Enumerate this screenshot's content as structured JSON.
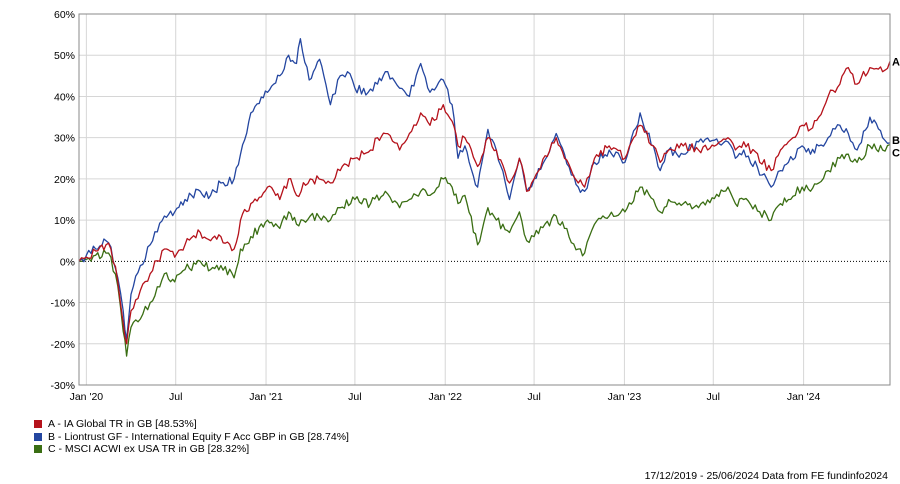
{
  "chart_data": {
    "type": "line",
    "title": "",
    "xlabel": "",
    "ylabel": "",
    "ylim": [
      -30,
      60
    ],
    "y_ticks": [
      "60%",
      "50%",
      "40%",
      "30%",
      "20%",
      "10%",
      "0%",
      "-10%",
      "-20%",
      "-30%"
    ],
    "y_tick_values": [
      60,
      50,
      40,
      30,
      20,
      10,
      0,
      -10,
      -20,
      -30
    ],
    "x_range": [
      "2019-12-17",
      "2024-06-25"
    ],
    "x_ticks": [
      {
        "label": "Jan '20",
        "date": "2020-01-01"
      },
      {
        "label": "Jul",
        "date": "2020-07-01"
      },
      {
        "label": "Jan '21",
        "date": "2021-01-01"
      },
      {
        "label": "Jul",
        "date": "2021-07-01"
      },
      {
        "label": "Jan '22",
        "date": "2022-01-01"
      },
      {
        "label": "Jul",
        "date": "2022-07-01"
      },
      {
        "label": "Jan '23",
        "date": "2023-01-01"
      },
      {
        "label": "Jul",
        "date": "2023-07-01"
      },
      {
        "label": "Jan '24",
        "date": "2024-01-01"
      }
    ],
    "grid": true,
    "zero_line": true,
    "legend_position": "bottom-left",
    "series": [
      {
        "name": "A - IA Global TR in GB [48.53%]",
        "end_label": "A",
        "color": "#b5121b",
        "points": [
          [
            "2019-12-17",
            0
          ],
          [
            "2020-01-01",
            1
          ],
          [
            "2020-01-20",
            2.5
          ],
          [
            "2020-02-10",
            4
          ],
          [
            "2020-02-20",
            3
          ],
          [
            "2020-03-05",
            -5
          ],
          [
            "2020-03-16",
            -15
          ],
          [
            "2020-03-23",
            -20
          ],
          [
            "2020-04-01",
            -12
          ],
          [
            "2020-04-20",
            -7
          ],
          [
            "2020-05-10",
            -3
          ],
          [
            "2020-06-08",
            3
          ],
          [
            "2020-06-29",
            1
          ],
          [
            "2020-07-20",
            4
          ],
          [
            "2020-08-20",
            7
          ],
          [
            "2020-09-10",
            5
          ],
          [
            "2020-10-01",
            6
          ],
          [
            "2020-10-28",
            3
          ],
          [
            "2020-11-10",
            10
          ],
          [
            "2020-12-01",
            14
          ],
          [
            "2021-01-04",
            18
          ],
          [
            "2021-01-29",
            15
          ],
          [
            "2021-02-16",
            20
          ],
          [
            "2021-03-04",
            16
          ],
          [
            "2021-04-01",
            20
          ],
          [
            "2021-05-12",
            19
          ],
          [
            "2021-06-01",
            22
          ],
          [
            "2021-07-01",
            25
          ],
          [
            "2021-08-02",
            27
          ],
          [
            "2021-08-16",
            30
          ],
          [
            "2021-09-01",
            31
          ],
          [
            "2021-09-30",
            27
          ],
          [
            "2021-10-20",
            31
          ],
          [
            "2021-11-12",
            36
          ],
          [
            "2021-12-01",
            33
          ],
          [
            "2021-12-28",
            38
          ],
          [
            "2022-01-15",
            34
          ],
          [
            "2022-01-27",
            28
          ],
          [
            "2022-02-10",
            30
          ],
          [
            "2022-03-08",
            23
          ],
          [
            "2022-03-29",
            30
          ],
          [
            "2022-04-15",
            27
          ],
          [
            "2022-05-12",
            19
          ],
          [
            "2022-06-01",
            25
          ],
          [
            "2022-06-16",
            17
          ],
          [
            "2022-07-01",
            20
          ],
          [
            "2022-08-15",
            30
          ],
          [
            "2022-09-01",
            25
          ],
          [
            "2022-09-29",
            19
          ],
          [
            "2022-10-12",
            18
          ],
          [
            "2022-11-01",
            25
          ],
          [
            "2022-12-01",
            28
          ],
          [
            "2023-01-02",
            25
          ],
          [
            "2023-02-02",
            33
          ],
          [
            "2023-03-01",
            28
          ],
          [
            "2023-03-15",
            24
          ],
          [
            "2023-04-01",
            27
          ],
          [
            "2023-05-01",
            28
          ],
          [
            "2023-06-01",
            27
          ],
          [
            "2023-07-31",
            30
          ],
          [
            "2023-08-15",
            27
          ],
          [
            "2023-09-01",
            29
          ],
          [
            "2023-10-27",
            22
          ],
          [
            "2023-11-15",
            27
          ],
          [
            "2023-12-01",
            29
          ],
          [
            "2023-12-29",
            33
          ],
          [
            "2024-01-15",
            32
          ],
          [
            "2024-02-01",
            35
          ],
          [
            "2024-02-20",
            40
          ],
          [
            "2024-03-15",
            43
          ],
          [
            "2024-04-01",
            47
          ],
          [
            "2024-04-19",
            43
          ],
          [
            "2024-05-15",
            47
          ],
          [
            "2024-06-10",
            46
          ],
          [
            "2024-06-25",
            48.53
          ]
        ]
      },
      {
        "name": "B - Liontrust GF - International Equity F Acc GBP in GB [28.74%]",
        "end_label": "B",
        "color": "#2446a0",
        "points": [
          [
            "2019-12-17",
            0
          ],
          [
            "2020-01-01",
            1.5
          ],
          [
            "2020-01-20",
            3
          ],
          [
            "2020-02-10",
            5
          ],
          [
            "2020-02-20",
            3.5
          ],
          [
            "2020-03-05",
            -4
          ],
          [
            "2020-03-16",
            -12
          ],
          [
            "2020-03-23",
            -19
          ],
          [
            "2020-04-01",
            -8
          ],
          [
            "2020-04-20",
            -1
          ],
          [
            "2020-05-10",
            4
          ],
          [
            "2020-06-08",
            11
          ],
          [
            "2020-06-29",
            12
          ],
          [
            "2020-07-20",
            15
          ],
          [
            "2020-08-20",
            17
          ],
          [
            "2020-09-10",
            16
          ],
          [
            "2020-10-01",
            19
          ],
          [
            "2020-10-28",
            20
          ],
          [
            "2020-11-10",
            26
          ],
          [
            "2020-12-01",
            36
          ],
          [
            "2021-01-04",
            41
          ],
          [
            "2021-01-29",
            45
          ],
          [
            "2021-02-16",
            50
          ],
          [
            "2021-03-04",
            48
          ],
          [
            "2021-03-12",
            54
          ],
          [
            "2021-03-30",
            44
          ],
          [
            "2021-04-20",
            49
          ],
          [
            "2021-05-12",
            38
          ],
          [
            "2021-06-01",
            45
          ],
          [
            "2021-06-16",
            46
          ],
          [
            "2021-07-01",
            42
          ],
          [
            "2021-07-28",
            41
          ],
          [
            "2021-08-16",
            43
          ],
          [
            "2021-09-01",
            46
          ],
          [
            "2021-09-30",
            42
          ],
          [
            "2021-10-20",
            40
          ],
          [
            "2021-11-12",
            48
          ],
          [
            "2021-12-01",
            41
          ],
          [
            "2021-12-28",
            44
          ],
          [
            "2022-01-15",
            38
          ],
          [
            "2022-01-27",
            25
          ],
          [
            "2022-02-10",
            28
          ],
          [
            "2022-03-08",
            18
          ],
          [
            "2022-03-29",
            32
          ],
          [
            "2022-04-15",
            27
          ],
          [
            "2022-05-12",
            15
          ],
          [
            "2022-06-01",
            25
          ],
          [
            "2022-06-16",
            17
          ],
          [
            "2022-07-01",
            20
          ],
          [
            "2022-08-15",
            31
          ],
          [
            "2022-09-01",
            26
          ],
          [
            "2022-09-29",
            18
          ],
          [
            "2022-10-12",
            17
          ],
          [
            "2022-11-01",
            24
          ],
          [
            "2022-12-01",
            27
          ],
          [
            "2023-01-02",
            24
          ],
          [
            "2023-02-02",
            36
          ],
          [
            "2023-03-01",
            28
          ],
          [
            "2023-03-15",
            22
          ],
          [
            "2023-04-01",
            27
          ],
          [
            "2023-05-01",
            26
          ],
          [
            "2023-06-01",
            29
          ],
          [
            "2023-07-31",
            29
          ],
          [
            "2023-08-15",
            25
          ],
          [
            "2023-09-01",
            27
          ],
          [
            "2023-10-27",
            18
          ],
          [
            "2023-11-15",
            22
          ],
          [
            "2023-12-01",
            24
          ],
          [
            "2023-12-29",
            28
          ],
          [
            "2024-01-15",
            26
          ],
          [
            "2024-02-01",
            28
          ],
          [
            "2024-02-20",
            30
          ],
          [
            "2024-03-15",
            33
          ],
          [
            "2024-04-01",
            31
          ],
          [
            "2024-04-19",
            27
          ],
          [
            "2024-05-15",
            35
          ],
          [
            "2024-06-10",
            30
          ],
          [
            "2024-06-25",
            28.74
          ]
        ]
      },
      {
        "name": "C - MSCI ACWI ex USA TR in GB [28.32%]",
        "end_label": "C",
        "color": "#3a6e13",
        "points": [
          [
            "2019-12-17",
            0
          ],
          [
            "2020-01-01",
            0.5
          ],
          [
            "2020-01-20",
            1.5
          ],
          [
            "2020-02-10",
            2
          ],
          [
            "2020-02-20",
            1
          ],
          [
            "2020-03-05",
            -6
          ],
          [
            "2020-03-16",
            -17
          ],
          [
            "2020-03-23",
            -23
          ],
          [
            "2020-04-01",
            -16
          ],
          [
            "2020-04-20",
            -14
          ],
          [
            "2020-05-10",
            -10
          ],
          [
            "2020-06-08",
            -3
          ],
          [
            "2020-06-29",
            -5
          ],
          [
            "2020-07-20",
            -2
          ],
          [
            "2020-08-20",
            0
          ],
          [
            "2020-09-10",
            -2
          ],
          [
            "2020-10-01",
            -1
          ],
          [
            "2020-10-28",
            -4
          ],
          [
            "2020-11-10",
            3
          ],
          [
            "2020-12-01",
            6
          ],
          [
            "2021-01-04",
            10
          ],
          [
            "2021-01-29",
            8
          ],
          [
            "2021-02-16",
            12
          ],
          [
            "2021-03-04",
            9
          ],
          [
            "2021-04-01",
            11
          ],
          [
            "2021-05-12",
            10
          ],
          [
            "2021-06-01",
            13
          ],
          [
            "2021-07-01",
            15
          ],
          [
            "2021-08-02",
            14
          ],
          [
            "2021-09-01",
            17
          ],
          [
            "2021-09-30",
            13
          ],
          [
            "2021-10-20",
            15
          ],
          [
            "2021-11-12",
            17
          ],
          [
            "2021-12-01",
            16
          ],
          [
            "2021-12-28",
            20
          ],
          [
            "2022-01-15",
            18
          ],
          [
            "2022-01-27",
            14
          ],
          [
            "2022-02-10",
            16
          ],
          [
            "2022-03-08",
            4
          ],
          [
            "2022-03-29",
            13
          ],
          [
            "2022-04-15",
            10
          ],
          [
            "2022-05-12",
            7
          ],
          [
            "2022-06-01",
            12
          ],
          [
            "2022-06-16",
            5
          ],
          [
            "2022-07-01",
            6
          ],
          [
            "2022-08-15",
            11
          ],
          [
            "2022-09-01",
            8
          ],
          [
            "2022-09-29",
            3
          ],
          [
            "2022-10-12",
            2
          ],
          [
            "2022-11-01",
            9
          ],
          [
            "2022-12-01",
            11
          ],
          [
            "2023-01-02",
            12
          ],
          [
            "2023-02-02",
            18
          ],
          [
            "2023-03-01",
            15
          ],
          [
            "2023-03-15",
            12
          ],
          [
            "2023-04-01",
            15
          ],
          [
            "2023-05-01",
            14
          ],
          [
            "2023-06-01",
            13
          ],
          [
            "2023-07-31",
            18
          ],
          [
            "2023-08-15",
            14
          ],
          [
            "2023-09-01",
            15
          ],
          [
            "2023-10-27",
            10
          ],
          [
            "2023-11-15",
            14
          ],
          [
            "2023-12-01",
            15
          ],
          [
            "2023-12-29",
            18
          ],
          [
            "2024-01-15",
            17
          ],
          [
            "2024-02-01",
            19
          ],
          [
            "2024-02-20",
            22
          ],
          [
            "2024-03-15",
            25
          ],
          [
            "2024-04-01",
            26
          ],
          [
            "2024-04-19",
            24
          ],
          [
            "2024-05-15",
            28
          ],
          [
            "2024-06-10",
            27
          ],
          [
            "2024-06-25",
            28.32
          ]
        ]
      }
    ]
  },
  "footer": {
    "date_range": "17/12/2019 - 25/06/2024 Data from FE fundinfo2024"
  }
}
